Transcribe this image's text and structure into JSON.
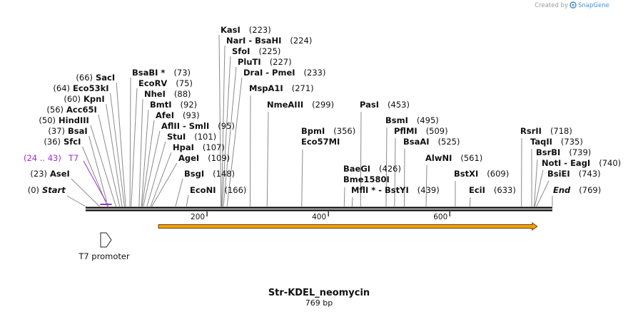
{
  "credit": {
    "prefix": "Created by",
    "brand": "SnapGene"
  },
  "plasmid": {
    "name": "Str-KDEL_neomycin",
    "length_label": "769 bp",
    "length": 769
  },
  "axis_ticks": [
    {
      "value": 200,
      "label": "200"
    },
    {
      "value": 400,
      "label": "400"
    },
    {
      "value": 600,
      "label": "600"
    }
  ],
  "primer": {
    "label": "T7",
    "range_label": "(24 .. 43)",
    "start": 24,
    "end": 43,
    "color": "#9b30d0"
  },
  "feature": {
    "name": "T7 promoter"
  },
  "orf": {
    "start": 120,
    "end": 744,
    "fill": "#f2a20c",
    "stroke": "#6b3a00"
  },
  "sites": [
    {
      "name": "Start",
      "pos": 0,
      "pos_label": "(0)",
      "style": "italic",
      "side": "left"
    },
    {
      "name": "AseI",
      "pos": 23,
      "pos_label": "(23)",
      "side": "left"
    },
    {
      "name": "SfcI",
      "pos": 36,
      "pos_label": "(36)",
      "side": "left"
    },
    {
      "name": "BsaI",
      "pos": 37,
      "pos_label": "(37)",
      "side": "left"
    },
    {
      "name": "HindIII",
      "pos": 50,
      "pos_label": "(50)",
      "side": "left"
    },
    {
      "name": "Acc65I",
      "pos": 56,
      "pos_label": "(56)",
      "side": "left"
    },
    {
      "name": "KpnI",
      "pos": 60,
      "pos_label": "(60)",
      "side": "left"
    },
    {
      "name": "Eco53kI",
      "pos": 64,
      "pos_label": "(64)",
      "side": "left"
    },
    {
      "name": "SacI",
      "pos": 66,
      "pos_label": "(66)",
      "side": "left"
    },
    {
      "name": "BsaBI *",
      "pos": 73,
      "pos_label": "(73)"
    },
    {
      "name": "EcoRV",
      "pos": 75,
      "pos_label": "(75)"
    },
    {
      "name": "NheI",
      "pos": 88,
      "pos_label": "(88)"
    },
    {
      "name": "BmtI",
      "pos": 92,
      "pos_label": "(92)"
    },
    {
      "name": "AfeI",
      "pos": 93,
      "pos_label": "(93)"
    },
    {
      "name": "AflII  -  SmlI",
      "pos": 95,
      "pos_label": "(95)"
    },
    {
      "name": "StuI",
      "pos": 101,
      "pos_label": "(101)"
    },
    {
      "name": "HpaI",
      "pos": 107,
      "pos_label": "(107)"
    },
    {
      "name": "AgeI",
      "pos": 109,
      "pos_label": "(109)"
    },
    {
      "name": "BsgI",
      "pos": 148,
      "pos_label": "(148)"
    },
    {
      "name": "EcoNI",
      "pos": 166,
      "pos_label": "(166)"
    },
    {
      "name": "KasI",
      "pos": 223,
      "pos_label": "(223)"
    },
    {
      "name": "NarI  -  BsaHI",
      "pos": 224,
      "pos_label": "(224)"
    },
    {
      "name": "SfoI",
      "pos": 225,
      "pos_label": "(225)"
    },
    {
      "name": "PluTI",
      "pos": 227,
      "pos_label": "(227)"
    },
    {
      "name": "DraI  -  PmeI",
      "pos": 233,
      "pos_label": "(233)"
    },
    {
      "name": "MspA1I",
      "pos": 271,
      "pos_label": "(271)"
    },
    {
      "name": "NmeAIII",
      "pos": 299,
      "pos_label": "(299)"
    },
    {
      "name": "BpmI",
      "pos": 356,
      "pos_label": "(356)"
    },
    {
      "name": "Eco57MI",
      "pos": 356,
      "pos_label": ""
    },
    {
      "name": "BaeGI",
      "pos": 426,
      "pos_label": "(426)"
    },
    {
      "name": "Bme1580I",
      "pos": 426,
      "pos_label": ""
    },
    {
      "name": "MflI *  -  BstYI",
      "pos": 439,
      "pos_label": "(439)"
    },
    {
      "name": "PasI",
      "pos": 453,
      "pos_label": "(453)"
    },
    {
      "name": "BsmI",
      "pos": 495,
      "pos_label": "(495)"
    },
    {
      "name": "PflMI",
      "pos": 509,
      "pos_label": "(509)"
    },
    {
      "name": "BsaAI",
      "pos": 525,
      "pos_label": "(525)"
    },
    {
      "name": "AlwNI",
      "pos": 561,
      "pos_label": "(561)"
    },
    {
      "name": "BstXI",
      "pos": 609,
      "pos_label": "(609)"
    },
    {
      "name": "EciI",
      "pos": 633,
      "pos_label": "(633)"
    },
    {
      "name": "RsrII",
      "pos": 718,
      "pos_label": "(718)"
    },
    {
      "name": "TaqII",
      "pos": 735,
      "pos_label": "(735)"
    },
    {
      "name": "BsrBI",
      "pos": 739,
      "pos_label": "(739)"
    },
    {
      "name": "NotI  -  EagI",
      "pos": 740,
      "pos_label": "(740)"
    },
    {
      "name": "BsiEI",
      "pos": 743,
      "pos_label": "(743)"
    },
    {
      "name": "End",
      "pos": 769,
      "pos_label": "(769)",
      "style": "italic"
    }
  ]
}
